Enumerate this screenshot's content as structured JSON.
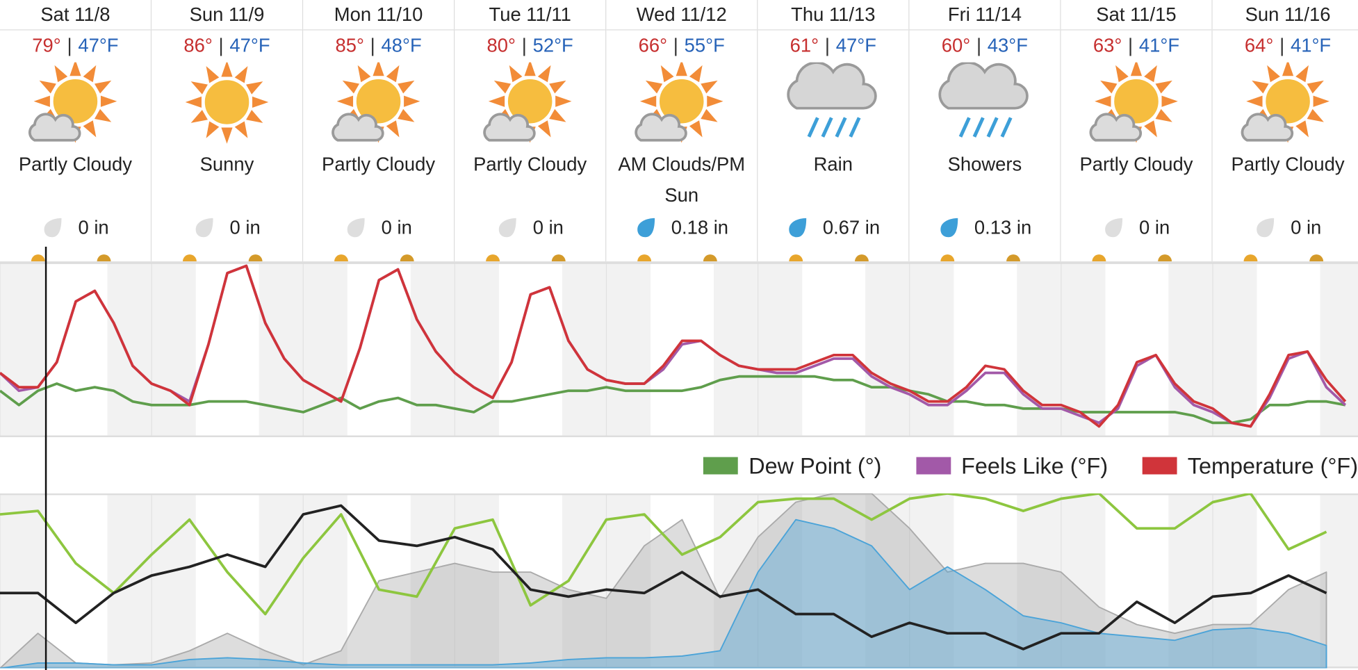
{
  "days": [
    {
      "date": "Sat 11/8",
      "high": "79°",
      "low": "47°F",
      "condition": "Partly Cloudy",
      "precip": "0 in"
    },
    {
      "date": "Sun 11/9",
      "high": "86°",
      "low": "47°F",
      "condition": "Sunny",
      "precip": "0 in"
    },
    {
      "date": "Mon 11/10",
      "high": "85°",
      "low": "48°F",
      "condition": "Partly Cloudy",
      "precip": "0 in"
    },
    {
      "date": "Tue 11/11",
      "high": "80°",
      "low": "52°F",
      "condition": "Partly Cloudy",
      "precip": "0 in"
    },
    {
      "date": "Wed 11/12",
      "high": "66°",
      "low": "55°F",
      "condition": "AM Clouds/PM Sun",
      "precip": "0.18 in"
    },
    {
      "date": "Thu 11/13",
      "high": "61°",
      "low": "47°F",
      "condition": "Rain",
      "precip": "0.67 in"
    },
    {
      "date": "Fri 11/14",
      "high": "60°",
      "low": "43°F",
      "condition": "Showers",
      "precip": "0.13 in"
    },
    {
      "date": "Sat 11/15",
      "high": "63°",
      "low": "41°F",
      "condition": "Partly Cloudy",
      "precip": "0 in"
    },
    {
      "date": "Sun 11/16",
      "high": "64°",
      "low": "41°F",
      "condition": "Partly Cloudy",
      "precip": "0 in"
    }
  ],
  "separator": "|",
  "chart_data": [
    {
      "type": "line",
      "xlim": [
        0,
        215
      ],
      "ylim": [
        38,
        87
      ],
      "legend": "bottom-right",
      "x": [
        0,
        3,
        6,
        9,
        12,
        15,
        18,
        21,
        24,
        27,
        30,
        33,
        36,
        39,
        42,
        45,
        48,
        51,
        54,
        57,
        60,
        63,
        66,
        69,
        72,
        75,
        78,
        81,
        84,
        87,
        90,
        93,
        96,
        99,
        102,
        105,
        108,
        111,
        114,
        117,
        120,
        123,
        126,
        129,
        132,
        135,
        138,
        141,
        144,
        147,
        150,
        153,
        156,
        159,
        162,
        165,
        168,
        171,
        174,
        177,
        180,
        183,
        186,
        189,
        192,
        195,
        198,
        201,
        204,
        207,
        210,
        213
      ],
      "series": [
        {
          "name": "Dew Point (°)",
          "color": "#5f9e4c",
          "values": [
            51,
            47,
            51,
            53,
            51,
            52,
            51,
            48,
            47,
            47,
            47,
            48,
            48,
            48,
            47,
            46,
            45,
            47,
            49,
            46,
            48,
            49,
            47,
            47,
            46,
            45,
            48,
            48,
            49,
            50,
            51,
            51,
            52,
            51,
            51,
            51,
            51,
            52,
            54,
            55,
            55,
            55,
            55,
            55,
            54,
            54,
            52,
            52,
            51,
            50,
            48,
            48,
            47,
            47,
            46,
            46,
            46,
            45,
            45,
            45,
            45,
            45,
            45,
            44,
            42,
            42,
            43,
            47,
            47,
            48,
            48,
            47
          ]
        },
        {
          "name": "Feels Like (°F)",
          "color": "#a259a8",
          "values": [
            56,
            51,
            52,
            59,
            76,
            79,
            70,
            58,
            53,
            51,
            48,
            64,
            84,
            86,
            70,
            60,
            54,
            51,
            48,
            63,
            82,
            85,
            71,
            62,
            56,
            52,
            49,
            59,
            78,
            80,
            65,
            57,
            54,
            53,
            53,
            57,
            64,
            65,
            61,
            58,
            57,
            56,
            56,
            58,
            60,
            60,
            55,
            52,
            50,
            47,
            47,
            51,
            56,
            56,
            50,
            46,
            46,
            44,
            42,
            46,
            58,
            61,
            52,
            47,
            45,
            42,
            41,
            49,
            60,
            62,
            52,
            47
          ]
        },
        {
          "name": "Temperature (°F)",
          "color": "#d0343a",
          "values": [
            56,
            52,
            52,
            59,
            76,
            79,
            70,
            58,
            53,
            51,
            47,
            64,
            84,
            86,
            70,
            60,
            54,
            51,
            48,
            63,
            82,
            85,
            71,
            62,
            56,
            52,
            49,
            59,
            78,
            80,
            65,
            57,
            54,
            53,
            53,
            58,
            65,
            65,
            61,
            58,
            57,
            57,
            57,
            59,
            61,
            61,
            56,
            53,
            51,
            48,
            48,
            52,
            58,
            57,
            51,
            47,
            47,
            45,
            41,
            47,
            59,
            61,
            53,
            48,
            46,
            42,
            41,
            50,
            61,
            62,
            54,
            48
          ]
        }
      ]
    },
    {
      "type": "line",
      "xlim": [
        0,
        215
      ],
      "ylim": [
        0,
        100
      ],
      "x": [
        0,
        6,
        12,
        18,
        24,
        30,
        36,
        42,
        48,
        54,
        60,
        66,
        72,
        78,
        84,
        90,
        96,
        102,
        108,
        114,
        120,
        126,
        132,
        138,
        144,
        150,
        156,
        162,
        168,
        174,
        180,
        186,
        192,
        198,
        204,
        210
      ],
      "series": [
        {
          "color": "#aaaaaa",
          "area": true,
          "values": [
            0,
            20,
            3,
            2,
            3,
            10,
            20,
            10,
            2,
            10,
            50,
            55,
            60,
            55,
            55,
            45,
            40,
            70,
            85,
            40,
            75,
            95,
            100,
            100,
            80,
            55,
            60,
            60,
            55,
            35,
            25,
            20,
            25,
            25,
            45,
            55
          ]
        },
        {
          "color": "#4aa3d8",
          "area": true,
          "values": [
            0,
            3,
            3,
            2,
            2,
            5,
            6,
            5,
            3,
            2,
            2,
            2,
            2,
            2,
            3,
            5,
            6,
            6,
            7,
            10,
            55,
            85,
            80,
            70,
            45,
            58,
            45,
            30,
            26,
            20,
            18,
            16,
            22,
            23,
            20,
            13
          ]
        },
        {
          "color": "#8dc63f",
          "values": [
            88,
            90,
            60,
            43,
            65,
            85,
            55,
            31,
            63,
            88,
            45,
            41,
            80,
            85,
            36,
            50,
            85,
            88,
            65,
            75,
            95,
            97,
            97,
            85,
            97,
            100,
            97,
            90,
            97,
            100,
            80,
            80,
            95,
            100,
            68,
            78
          ]
        },
        {
          "color": "#222222",
          "values": [
            43,
            43,
            26,
            43,
            53,
            58,
            65,
            58,
            88,
            93,
            73,
            70,
            75,
            68,
            45,
            41,
            45,
            43,
            55,
            41,
            45,
            31,
            31,
            18,
            26,
            20,
            20,
            11,
            20,
            20,
            38,
            26,
            41,
            43,
            53,
            43
          ]
        }
      ]
    }
  ]
}
